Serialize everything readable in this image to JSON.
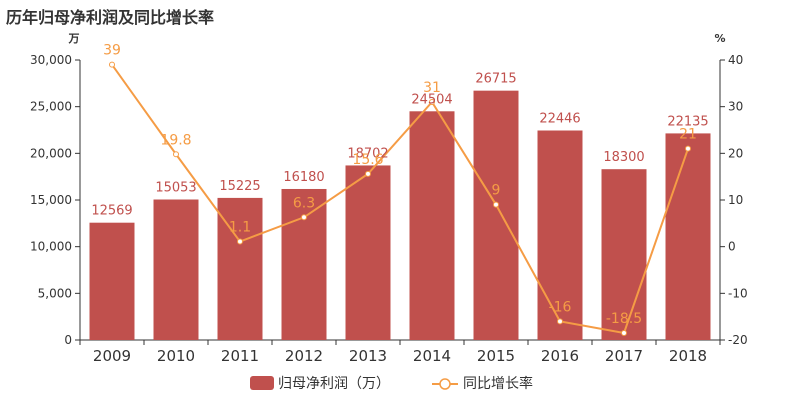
{
  "chart_data": {
    "type": "bar",
    "title": "历年归母净利润及同比增长率",
    "categories": [
      "2009",
      "2010",
      "2011",
      "2012",
      "2013",
      "2014",
      "2015",
      "2016",
      "2017",
      "2018"
    ],
    "series": [
      {
        "name": "归母净利润（万）",
        "type": "bar",
        "axis": "left",
        "values": [
          12569,
          15053,
          15225,
          16180,
          18702,
          24504,
          26715,
          22446,
          18300,
          22135
        ],
        "labels": [
          "12569",
          "15053",
          "15225",
          "16180",
          "18702",
          "24504",
          "26715",
          "22446",
          "18300",
          "22135"
        ]
      },
      {
        "name": "同比增长率",
        "type": "line",
        "axis": "right",
        "values": [
          39,
          19.8,
          1.1,
          6.3,
          15.6,
          31,
          9,
          -16,
          -18.5,
          21
        ],
        "labels": [
          "39",
          "19.8",
          "1.1",
          "6.3",
          "15.6",
          "31",
          "9",
          "-16",
          "-18.5",
          "21"
        ]
      }
    ],
    "ylabel_left": "万",
    "ylabel_right": "%",
    "ylim_left": [
      0,
      30000
    ],
    "ylim_right": [
      -20,
      40
    ],
    "yticks_left": [
      "0",
      "5,000",
      "10,000",
      "15,000",
      "20,000",
      "25,000",
      "30,000"
    ],
    "yticks_right": [
      "-20",
      "-10",
      "0",
      "10",
      "20",
      "30",
      "40"
    ],
    "grid": false,
    "legend_position": "bottom-center",
    "colors": {
      "bar": "#c0504d",
      "line": "#f59c45",
      "bar_label": "#c0504d",
      "line_label": "#f59c45",
      "axis": "#333333"
    }
  }
}
